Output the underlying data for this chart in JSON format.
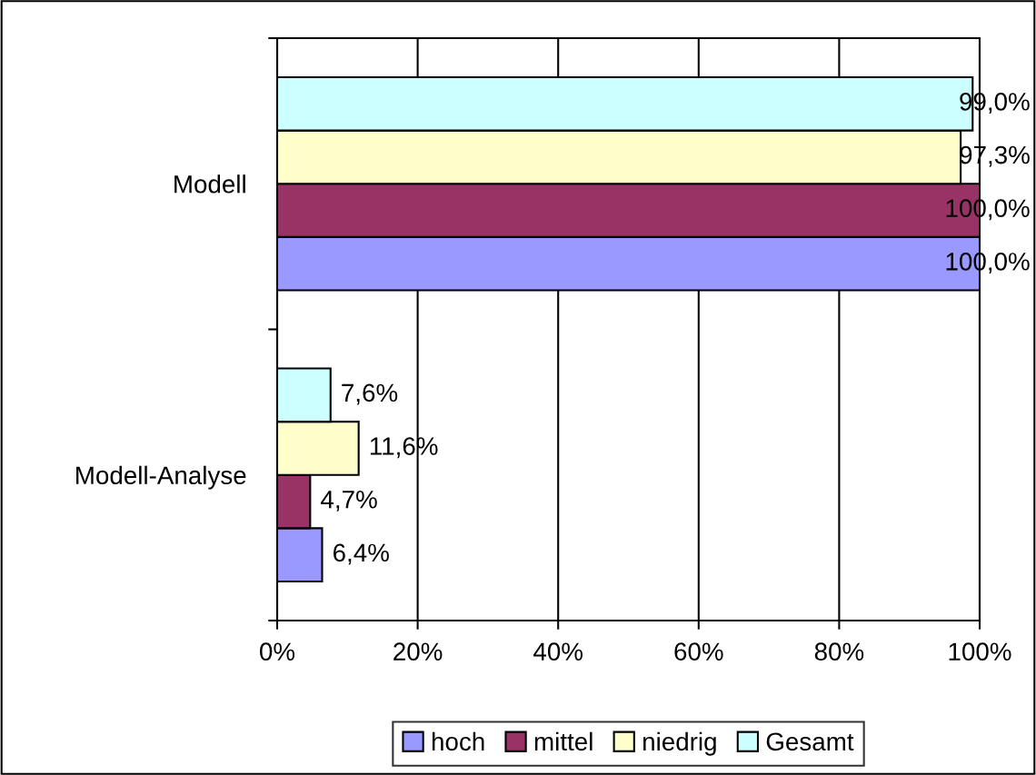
{
  "chart_data": {
    "type": "bar",
    "orientation": "horizontal",
    "categories": [
      "Modell",
      "Modell-Analyse"
    ],
    "series": [
      {
        "name": "hoch",
        "color": "#9999ff",
        "values": [
          100.0,
          6.4
        ],
        "value_labels": [
          "100,0%",
          "6,4%"
        ]
      },
      {
        "name": "mittel",
        "color": "#993366",
        "values": [
          100.0,
          4.7
        ],
        "value_labels": [
          "100,0%",
          "4,7%"
        ]
      },
      {
        "name": "niedrig",
        "color": "#ffffcc",
        "values": [
          97.3,
          11.6
        ],
        "value_labels": [
          "97,3%",
          "11,6%"
        ]
      },
      {
        "name": "Gesamt",
        "color": "#ccffff",
        "values": [
          99.0,
          7.6
        ],
        "value_labels": [
          "99,0%",
          "7,6%"
        ]
      }
    ],
    "xlim": [
      0,
      100
    ],
    "xticks": [
      {
        "value": 0,
        "label": "0%"
      },
      {
        "value": 20,
        "label": "20%"
      },
      {
        "value": 40,
        "label": "40%"
      },
      {
        "value": 60,
        "label": "60%"
      },
      {
        "value": 80,
        "label": "80%"
      },
      {
        "value": 100,
        "label": "100%"
      }
    ],
    "grid": "x",
    "legend": "bottom"
  }
}
